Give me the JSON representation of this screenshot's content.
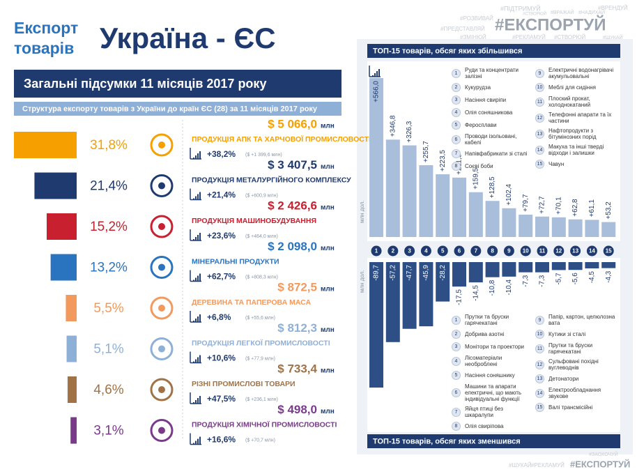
{
  "header": {
    "title_lines": [
      "Експорт",
      "товарів"
    ],
    "title": "Україна - ЄС"
  },
  "hashtags": {
    "top": [
      "#ПІДТРИМУЙ",
      "#ВРАЖАЙ",
      "#ВРЕНДУЙ",
      "#РОЗВИВАЙ",
      "#СТВОРЮЙ",
      "#НАДИХАЙ",
      "#ЕКСПОРТУЙ",
      "#ПРЕДСТАВЛЯЙ",
      "#ЗМІНЮЙ",
      "#РЕКЛАМУЙ",
      "#СТВОРЮЙ",
      "#ШУКАЙ"
    ],
    "bottom": [
      "#ЗАОХОЧУЙ",
      "#ШУКАЙ",
      "#РЕКЛАМУЙ",
      "#ЕКСПОРТУЙ"
    ]
  },
  "summary": {
    "banner": "Загальні підсумки 11 місяців 2017 року",
    "subtitle": "Структура експорту товарів з України  до країн ЄС (28)  за 11 місяців 2017 року",
    "amount_unit": "млн",
    "items": [
      {
        "share": 31.8,
        "share_label": "31,8%",
        "color": "#f5a000",
        "amount": "$ 5 066,0",
        "name": "ПРОДУКЦІЯ АПК ТА ХАРЧОВОЇ ПРОМИСЛОВОСТІ",
        "growth": "+38,2%",
        "change": "($ +1 399,6 млн)"
      },
      {
        "share": 21.4,
        "share_label": "21,4%",
        "color": "#1f3a6e",
        "amount": "$ 3 407,5",
        "name": "ПРОДУКЦІЯ МЕТАЛУРГІЙНОГО КОМПЛЕКСУ",
        "growth": "+21,4%",
        "change": "($ +600,9 млн)"
      },
      {
        "share": 15.2,
        "share_label": "15,2%",
        "color": "#c8202f",
        "amount": "$ 2 426,6",
        "name": "ПРОДУКЦІЯ МАШИНОБУДУВАННЯ",
        "growth": "+23,6%",
        "change": "($ +464,0 млн)"
      },
      {
        "share": 13.2,
        "share_label": "13,2%",
        "color": "#2a74bf",
        "amount": "$ 2 098,0",
        "name": "МІНЕРАЛЬНІ ПРОДУКТИ",
        "growth": "+62,7%",
        "change": "($ +808,3 млн)"
      },
      {
        "share": 5.5,
        "share_label": "5,5%",
        "color": "#f29a5e",
        "amount": "$ 872,5",
        "name": "ДЕРЕВИНА ТА ПАПЕРОВА МАСА",
        "growth": "+6,8%",
        "change": "($ +55,6 млн)"
      },
      {
        "share": 5.1,
        "share_label": "5,1%",
        "color": "#8fb0d6",
        "amount": "$ 812,3",
        "name": "ПРОДУКЦІЯ ЛЕГКОЇ ПРОМИСЛОВОСТІ",
        "growth": "+10,6%",
        "change": "($ +77,9 млн)"
      },
      {
        "share": 4.6,
        "share_label": "4,6%",
        "color": "#a07246",
        "amount": "$ 733,4",
        "name": "РІЗНІ ПРОМИСЛОВІ ТОВАРИ",
        "growth": "+47,5%",
        "change": "($ +236,1 млн)"
      },
      {
        "share": 3.1,
        "share_label": "3,1%",
        "color": "#7a3a8a",
        "amount": "$ 498,0",
        "name": "ПРОДУКЦІЯ ХІМІЧНОЇ ПРОМИСЛОВОСТІ",
        "growth": "+16,6%",
        "change": "($ +70,7 млн)"
      }
    ]
  },
  "chart_data": [
    {
      "type": "bar",
      "title": "ТОП-15 товарів, обсяг яких збільшився",
      "y_label": "млн дол.",
      "color": "#a8bedb",
      "categories": [
        "1",
        "2",
        "3",
        "4",
        "5",
        "6",
        "7",
        "8",
        "9",
        "10",
        "11",
        "12",
        "13",
        "14",
        "15"
      ],
      "values": [
        566.0,
        346.8,
        326.3,
        255.7,
        223.5,
        211.5,
        159.5,
        128.5,
        102.4,
        79.7,
        72.7,
        70.1,
        62.8,
        61.1,
        53.2
      ],
      "value_labels": [
        "+566,0",
        "+346,8",
        "+326,3",
        "+255,7",
        "+223,5",
        "+211,5",
        "+159,5",
        "+128,5",
        "+102,4",
        "+79,7",
        "+72,7",
        "+70,1",
        "+62,8",
        "+61,1",
        "+53,2"
      ],
      "category_names": [
        "Руди та концентрати залізні",
        "Кукурудза",
        "Насіння свиріпи",
        "Олія соняшникова",
        "Феросплави",
        "Проводи ізольовані, кабелі",
        "Напівфабрикати зі сталі",
        "Соєві боби",
        "Електричні водонагрівачі акумульовальні",
        "Меблі для сидіння",
        "Плоский прокат, холоднокатаний",
        "Телефонні апарати та їх частини",
        "Нафтопродукти з бітумінозних порід",
        "Макуха та інші тверді відходи і залишки",
        "Чавун"
      ]
    },
    {
      "type": "bar",
      "title": "ТОП-15 товарів, обсяг яких зменшився",
      "y_label": "млн дол.",
      "color": "#2d4f86",
      "categories": [
        "1",
        "2",
        "3",
        "4",
        "5",
        "6",
        "7",
        "8",
        "9",
        "10",
        "11",
        "12",
        "13",
        "14",
        "15"
      ],
      "values": [
        -89.7,
        -57.2,
        -47.7,
        -45.9,
        -28.2,
        -17.5,
        -14.5,
        -10.8,
        -10.4,
        -7.3,
        -7.3,
        -5.7,
        -5.6,
        -4.5,
        -4.3
      ],
      "value_labels": [
        "-89,7",
        "-57,2",
        "-47,7",
        "-45,9",
        "-28,2",
        "-17,5",
        "-14,5",
        "-10,8",
        "-10,4",
        "-7,3",
        "-7,3",
        "-5,7",
        "-5,6",
        "-4,5",
        "-4,3"
      ],
      "category_names": [
        "Прутки та бруски гарячекатані",
        "Добрива азотні",
        "Монітори та проектори",
        "Лісоматеріали необроблені",
        "Насіння соняшнику",
        "Машини та апарати електричні, що мають індивідуальні функції",
        "Яйця птиці без шкаралупи",
        "Олія свиріпова",
        "Папір, картон, целюлозна вата",
        "Кутики зі сталі",
        "Прутки та бруски гарячекатані",
        "Сульфовані похідні вуглеводнів",
        "Детонатори",
        "Електрообладнання звукове",
        "Валі трансмісійні"
      ]
    }
  ]
}
